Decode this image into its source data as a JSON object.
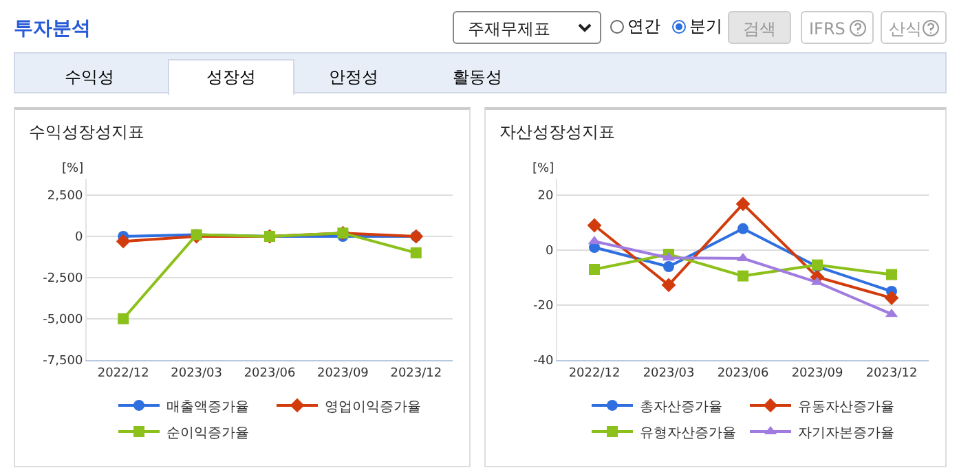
{
  "chart_data": [
    {
      "type": "other",
      "title": "투자분석",
      "annotations": [
        "주재무제표",
        "연간",
        "분기",
        "검색",
        "IFRS",
        "산식",
        "수익성",
        "성장성",
        "안정성",
        "활동성"
      ]
    },
    {
      "type": "line",
      "title": "수익성장성지표",
      "ylabel": "[%]",
      "categories": [
        "2022/12",
        "2023/03",
        "2023/06",
        "2023/09",
        "2023/12"
      ],
      "series": [
        {
          "name": "매출액증가율",
          "color": "#2f6fe0",
          "marker": "circle",
          "values": [
            0,
            100,
            0,
            0,
            0
          ]
        },
        {
          "name": "영업이익증가율",
          "color": "#d23c0c",
          "marker": "diamond",
          "values": [
            -300,
            0,
            0,
            200,
            0
          ]
        },
        {
          "name": "순이익증가율",
          "color": "#8cc01a",
          "marker": "square",
          "values": [
            -5000,
            100,
            0,
            200,
            -1000
          ]
        }
      ],
      "ylim": [
        -7500,
        3500
      ],
      "yticks": [
        {
          "value": -7500,
          "label": "-7,500"
        },
        {
          "value": -5000,
          "label": "-5,000"
        },
        {
          "value": -2500,
          "label": "-2,500"
        },
        0,
        {
          "value": 2500,
          "label": "2,500"
        }
      ],
      "grid": "y",
      "legend": "bottom"
    },
    {
      "type": "line",
      "title": "자산성장성지표",
      "ylabel": "[%]",
      "categories": [
        "2022/12",
        "2023/03",
        "2023/06",
        "2023/09",
        "2023/12"
      ],
      "series": [
        {
          "name": "총자산증가율",
          "color": "#2f6fe0",
          "marker": "circle",
          "values": [
            1,
            -6,
            7.8,
            -6,
            -15
          ]
        },
        {
          "name": "유동자산증가율",
          "color": "#d23c0c",
          "marker": "diamond",
          "values": [
            9,
            -12.7,
            16.8,
            -9.8,
            -17.4
          ]
        },
        {
          "name": "유형자산증가율",
          "color": "#8cc01a",
          "marker": "square",
          "values": [
            -7,
            -1.5,
            -9.4,
            -5.4,
            -8.9
          ]
        },
        {
          "name": "자기자본증가율",
          "color": "#a07ce0",
          "marker": "triangle",
          "values": [
            3.2,
            -2.8,
            -3,
            -11.7,
            -23.3
          ]
        }
      ],
      "ylim": [
        -40,
        26
      ],
      "yticks": [
        -40,
        -20,
        0,
        20
      ],
      "grid": "y",
      "legend": "bottom"
    }
  ]
}
